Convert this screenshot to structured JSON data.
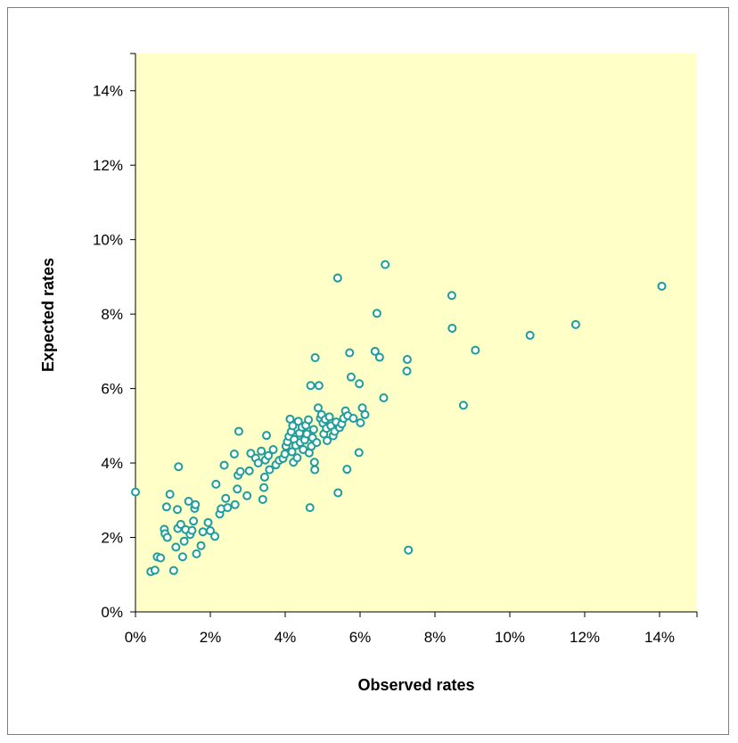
{
  "chart_data": {
    "type": "scatter",
    "title": "",
    "xlabel": "Observed rates",
    "ylabel": "Expected rates",
    "xlim": [
      0,
      0.15
    ],
    "ylim": [
      0,
      0.15
    ],
    "x_ticks": [
      0,
      0.02,
      0.04,
      0.06,
      0.08,
      0.1,
      0.12,
      0.14
    ],
    "y_ticks": [
      0,
      0.02,
      0.04,
      0.06,
      0.08,
      0.1,
      0.12,
      0.14
    ],
    "x_tick_labels": [
      "0%",
      "2%",
      "4%",
      "6%",
      "8%",
      "10%",
      "12%",
      "14%"
    ],
    "y_tick_labels": [
      "0%",
      "2%",
      "4%",
      "6%",
      "8%",
      "10%",
      "12%",
      "14%"
    ],
    "grid": false,
    "legend": "none",
    "colors": {
      "plot_background": "#ffffc8",
      "marker": "#1f9d9a"
    },
    "series": [
      {
        "marker": "open-circle",
        "points": [
          [
            0.0,
            0.0322
          ],
          [
            0.0041,
            0.0108
          ],
          [
            0.0052,
            0.0112
          ],
          [
            0.0058,
            0.0148
          ],
          [
            0.0067,
            0.0145
          ],
          [
            0.0077,
            0.0222
          ],
          [
            0.0079,
            0.021
          ],
          [
            0.0083,
            0.0282
          ],
          [
            0.0085,
            0.02
          ],
          [
            0.0092,
            0.0316
          ],
          [
            0.0102,
            0.0111
          ],
          [
            0.0108,
            0.0174
          ],
          [
            0.0112,
            0.0275
          ],
          [
            0.0113,
            0.0224
          ],
          [
            0.0115,
            0.039
          ],
          [
            0.0121,
            0.0235
          ],
          [
            0.0126,
            0.0148
          ],
          [
            0.013,
            0.019
          ],
          [
            0.0134,
            0.0221
          ],
          [
            0.0142,
            0.0297
          ],
          [
            0.0146,
            0.0208
          ],
          [
            0.0151,
            0.0219
          ],
          [
            0.0155,
            0.0244
          ],
          [
            0.0158,
            0.0278
          ],
          [
            0.016,
            0.0288
          ],
          [
            0.0163,
            0.0156
          ],
          [
            0.0175,
            0.0178
          ],
          [
            0.018,
            0.0215
          ],
          [
            0.0194,
            0.024
          ],
          [
            0.02,
            0.0218
          ],
          [
            0.0212,
            0.0203
          ],
          [
            0.0215,
            0.0343
          ],
          [
            0.0225,
            0.0263
          ],
          [
            0.0229,
            0.0277
          ],
          [
            0.0237,
            0.0394
          ],
          [
            0.0241,
            0.0305
          ],
          [
            0.0246,
            0.028
          ],
          [
            0.0264,
            0.0424
          ],
          [
            0.0266,
            0.0288
          ],
          [
            0.0272,
            0.033
          ],
          [
            0.0274,
            0.0367
          ],
          [
            0.0276,
            0.0485
          ],
          [
            0.028,
            0.0377
          ],
          [
            0.0298,
            0.0312
          ],
          [
            0.0304,
            0.0379
          ],
          [
            0.0308,
            0.0426
          ],
          [
            0.0321,
            0.0413
          ],
          [
            0.0328,
            0.04
          ],
          [
            0.0336,
            0.0432
          ],
          [
            0.034,
            0.0302
          ],
          [
            0.0343,
            0.0334
          ],
          [
            0.0345,
            0.0362
          ],
          [
            0.0347,
            0.0408
          ],
          [
            0.035,
            0.0474
          ],
          [
            0.0355,
            0.042
          ],
          [
            0.0358,
            0.0382
          ],
          [
            0.0368,
            0.0436
          ],
          [
            0.0375,
            0.0395
          ],
          [
            0.0384,
            0.0407
          ],
          [
            0.0394,
            0.0412
          ],
          [
            0.0399,
            0.0424
          ],
          [
            0.0402,
            0.0445
          ],
          [
            0.0406,
            0.0457
          ],
          [
            0.041,
            0.0471
          ],
          [
            0.0413,
            0.0518
          ],
          [
            0.0416,
            0.0484
          ],
          [
            0.0418,
            0.043
          ],
          [
            0.042,
            0.05
          ],
          [
            0.0422,
            0.0402
          ],
          [
            0.0424,
            0.0463
          ],
          [
            0.0428,
            0.0447
          ],
          [
            0.0432,
            0.0414
          ],
          [
            0.0435,
            0.0512
          ],
          [
            0.0438,
            0.048
          ],
          [
            0.044,
            0.0455
          ],
          [
            0.0445,
            0.0496
          ],
          [
            0.0448,
            0.0436
          ],
          [
            0.0452,
            0.0462
          ],
          [
            0.0455,
            0.0501
          ],
          [
            0.0458,
            0.0478
          ],
          [
            0.0462,
            0.0516
          ],
          [
            0.0464,
            0.0427
          ],
          [
            0.0466,
            0.028
          ],
          [
            0.0468,
            0.0608
          ],
          [
            0.047,
            0.0445
          ],
          [
            0.0473,
            0.0468
          ],
          [
            0.0476,
            0.049
          ],
          [
            0.0478,
            0.0402
          ],
          [
            0.0479,
            0.0382
          ],
          [
            0.048,
            0.0683
          ],
          [
            0.0484,
            0.0455
          ],
          [
            0.0488,
            0.0548
          ],
          [
            0.049,
            0.0608
          ],
          [
            0.0494,
            0.052
          ],
          [
            0.0497,
            0.053
          ],
          [
            0.0501,
            0.0507
          ],
          [
            0.0503,
            0.0478
          ],
          [
            0.0507,
            0.0517
          ],
          [
            0.051,
            0.0493
          ],
          [
            0.0512,
            0.046
          ],
          [
            0.0518,
            0.0524
          ],
          [
            0.0522,
            0.05
          ],
          [
            0.0528,
            0.0473
          ],
          [
            0.0532,
            0.0485
          ],
          [
            0.0536,
            0.051
          ],
          [
            0.054,
            0.0897
          ],
          [
            0.0541,
            0.032
          ],
          [
            0.0545,
            0.0495
          ],
          [
            0.0551,
            0.0505
          ],
          [
            0.0556,
            0.052
          ],
          [
            0.0561,
            0.054
          ],
          [
            0.0565,
            0.0383
          ],
          [
            0.0567,
            0.0527
          ],
          [
            0.0572,
            0.0696
          ],
          [
            0.0576,
            0.0631
          ],
          [
            0.0582,
            0.052
          ],
          [
            0.0597,
            0.0428
          ],
          [
            0.0598,
            0.0613
          ],
          [
            0.0601,
            0.0508
          ],
          [
            0.0606,
            0.0548
          ],
          [
            0.0613,
            0.053
          ],
          [
            0.064,
            0.07
          ],
          [
            0.0645,
            0.0802
          ],
          [
            0.0652,
            0.0684
          ],
          [
            0.0663,
            0.0575
          ],
          [
            0.0667,
            0.0933
          ],
          [
            0.0725,
            0.0647
          ],
          [
            0.0726,
            0.0678
          ],
          [
            0.0729,
            0.0166
          ],
          [
            0.0845,
            0.085
          ],
          [
            0.0846,
            0.0762
          ],
          [
            0.0876,
            0.0555
          ],
          [
            0.0908,
            0.0703
          ],
          [
            0.1054,
            0.0743
          ],
          [
            0.1176,
            0.0772
          ],
          [
            0.1406,
            0.0875
          ]
        ]
      }
    ]
  }
}
